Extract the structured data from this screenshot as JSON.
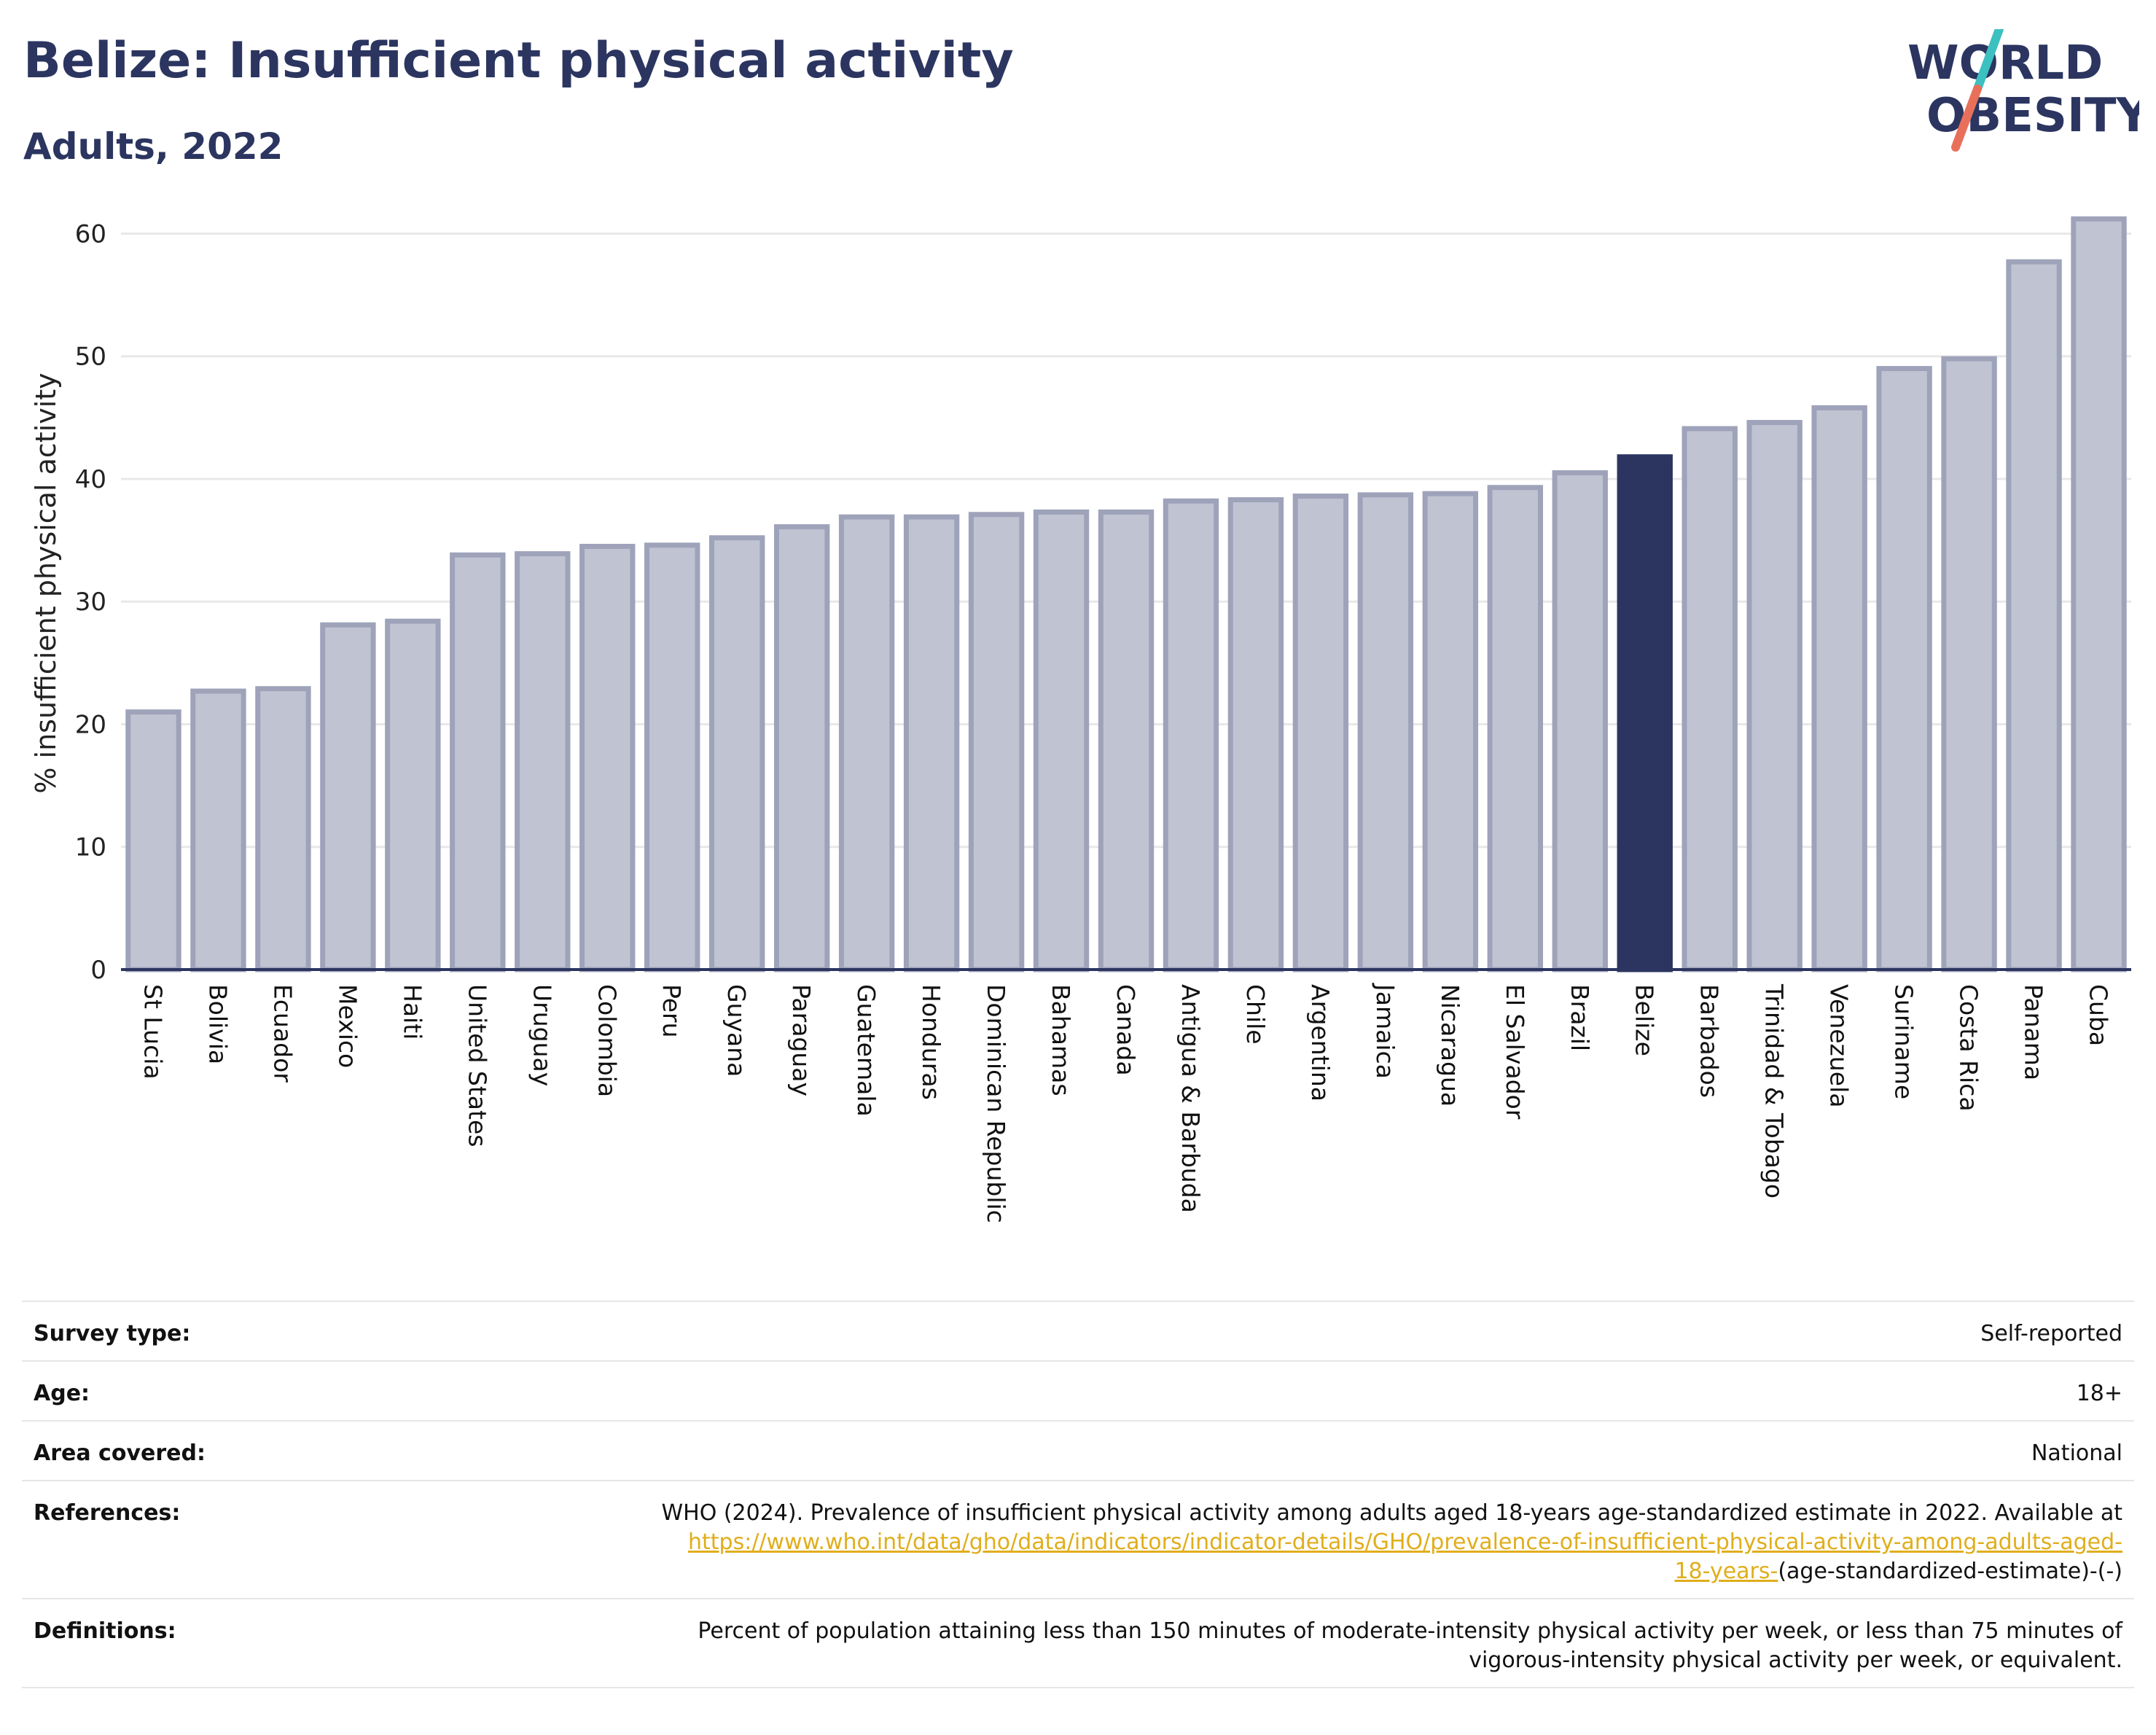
{
  "header": {
    "title": "Belize: Insufficient physical activity",
    "subtitle": "Adults, 2022"
  },
  "logo": {
    "line1": "WORLD",
    "line2": "OBESITY",
    "colors": {
      "text": "#2b3560",
      "slash_top": "#3cc0c0",
      "slash_bottom": "#e8705a"
    }
  },
  "colors": {
    "bar": "#c0c4d2",
    "bar_border": "#9ea3ba",
    "highlight": "#2b3560",
    "grid": "#e8e8e8",
    "axis": "#2b3560",
    "link": "#e0ae1b"
  },
  "chart_data": {
    "type": "bar",
    "title": "Belize: Insufficient physical activity",
    "subtitle": "Adults, 2022",
    "ylabel": "% insufficient physical activity",
    "xlabel": "",
    "ylim": [
      0,
      63
    ],
    "yticks": [
      0,
      10,
      20,
      30,
      40,
      50,
      60
    ],
    "grid": true,
    "highlight": "Belize",
    "categories": [
      "St Lucia",
      "Bolivia",
      "Ecuador",
      "Mexico",
      "Haiti",
      "United States",
      "Uruguay",
      "Colombia",
      "Peru",
      "Guyana",
      "Paraguay",
      "Guatemala",
      "Honduras",
      "Dominican Republic",
      "Bahamas",
      "Canada",
      "Antigua & Barbuda",
      "Chile",
      "Argentina",
      "Jamaica",
      "Nicaragua",
      "El Salvador",
      "Brazil",
      "Belize",
      "Barbados",
      "Trinidad & Tobago",
      "Venezuela",
      "Suriname",
      "Costa Rica",
      "Panama",
      "Cuba"
    ],
    "values": [
      21.0,
      22.7,
      22.9,
      28.1,
      28.4,
      33.8,
      33.9,
      34.5,
      34.6,
      35.2,
      36.1,
      36.9,
      36.9,
      37.1,
      37.3,
      37.3,
      38.2,
      38.3,
      38.6,
      38.7,
      38.8,
      39.3,
      40.5,
      41.8,
      44.1,
      44.6,
      45.8,
      49.0,
      49.8,
      57.7,
      61.2
    ]
  },
  "info": {
    "survey_type_label": "Survey type:",
    "survey_type_value": "Self-reported",
    "age_label": "Age:",
    "age_value": "18+",
    "area_label": "Area covered:",
    "area_value": "National",
    "references_label": "References:",
    "references_text": "WHO (2024). Prevalence of insufficient physical activity among adults aged 18-years age-standardized estimate in 2022. Available at",
    "references_link_1": "https://www.who.int/data/gho/data/indicators/indicator-details/GHO/prevalence-of-insufficient-physical-activity-among-adults-aged-",
    "references_link_2": "18-years-",
    "references_suffix": "(age-standardized-estimate)-(-)",
    "definitions_label": "Definitions:",
    "definitions_line_1": "Percent of population attaining less than 150 minutes of moderate-intensity physical activity per week, or less than 75 minutes of",
    "definitions_line_2": "vigorous-intensity physical activity per week, or equivalent."
  }
}
